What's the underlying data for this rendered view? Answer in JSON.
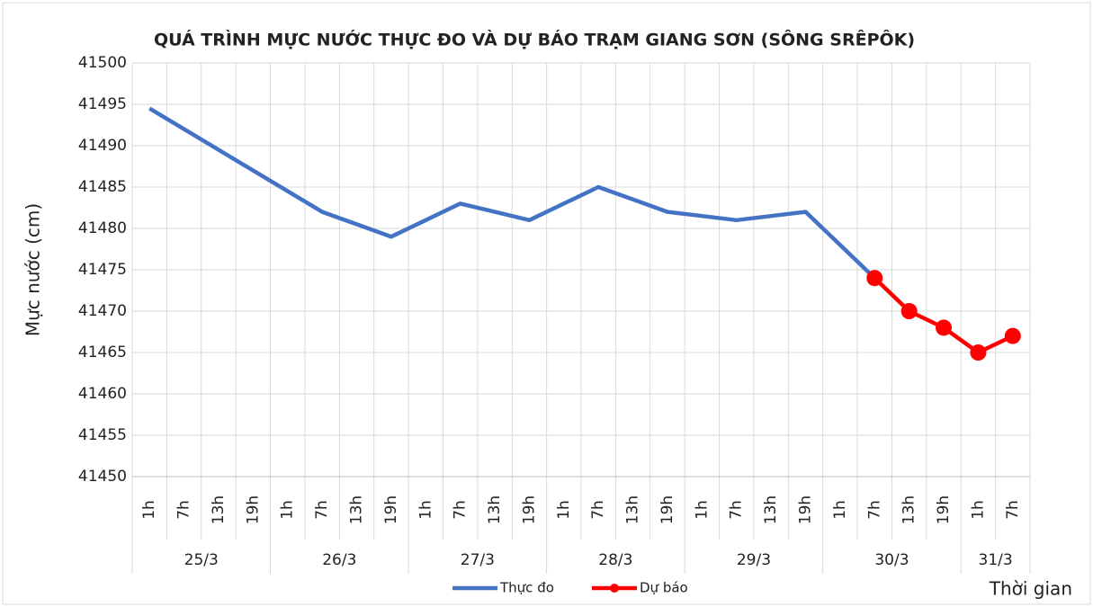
{
  "chart_data": {
    "type": "line",
    "title": "QUÁ TRÌNH MỰC NƯỚC THỰC ĐO VÀ DỰ BÁO TRẠM GIANG SƠN (SÔNG SRÊPÔK)",
    "y_label": "Mực nước (cm)",
    "x_label": "Thời gian",
    "categories": [
      [
        "1h",
        "25/3"
      ],
      [
        "7h",
        "25/3"
      ],
      [
        "13h",
        "25/3"
      ],
      [
        "19h",
        "25/3"
      ],
      [
        "1h",
        "26/3"
      ],
      [
        "7h",
        "26/3"
      ],
      [
        "13h",
        "26/3"
      ],
      [
        "19h",
        "26/3"
      ],
      [
        "1h",
        "27/3"
      ],
      [
        "7h",
        "27/3"
      ],
      [
        "13h",
        "27/3"
      ],
      [
        "19h",
        "27/3"
      ],
      [
        "1h",
        "28/3"
      ],
      [
        "7h",
        "28/3"
      ],
      [
        "13h",
        "28/3"
      ],
      [
        "19h",
        "28/3"
      ],
      [
        "1h",
        "29/3"
      ],
      [
        "7h",
        "29/3"
      ],
      [
        "13h",
        "29/3"
      ],
      [
        "19h",
        "29/3"
      ],
      [
        "1h",
        "30/3"
      ],
      [
        "7h",
        "30/3"
      ],
      [
        "13h",
        "30/3"
      ],
      [
        "19h",
        "30/3"
      ],
      [
        "1h",
        "31/3"
      ],
      [
        "7h",
        "31/3"
      ]
    ],
    "series": [
      {
        "name": "Thực đo",
        "color": "#4472c4",
        "marker": false,
        "values": [
          41494.5,
          41492,
          41489.5,
          41487,
          41484.5,
          41482,
          41480.5,
          41479,
          41481,
          41483,
          41482,
          41481,
          41483,
          41485,
          41483.5,
          41482,
          41481.5,
          41481,
          41481.5,
          41482,
          41478,
          41474,
          null,
          null,
          null,
          null
        ]
      },
      {
        "name": "Dự báo",
        "color": "#ff0000",
        "marker": true,
        "values": [
          null,
          null,
          null,
          null,
          null,
          null,
          null,
          null,
          null,
          null,
          null,
          null,
          null,
          null,
          null,
          null,
          null,
          null,
          null,
          null,
          null,
          41474,
          41470,
          41468,
          41465,
          41467
        ]
      }
    ],
    "ylim": [
      41450,
      41500
    ],
    "yticks": [
      41450,
      41455,
      41460,
      41465,
      41470,
      41475,
      41480,
      41485,
      41490,
      41495,
      41500
    ],
    "grid": true
  }
}
